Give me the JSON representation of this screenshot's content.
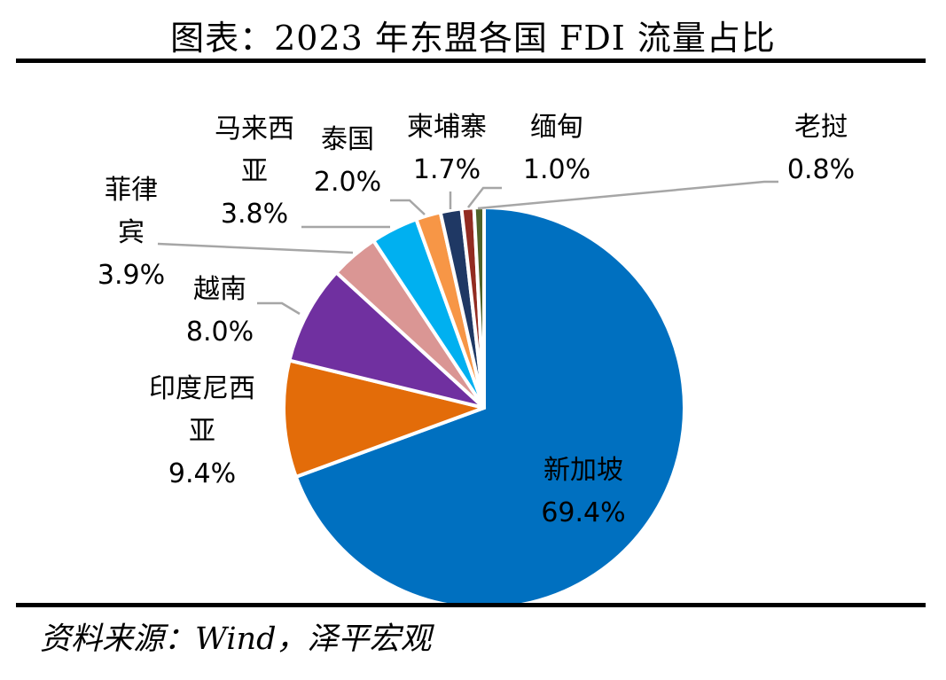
{
  "title": "图表：2023 年东盟各国 FDI 流量占比",
  "source": "资料来源：Wind，泽平宏观",
  "chart_data": {
    "type": "pie",
    "start_angle_deg": 0,
    "direction": "clockwise",
    "slices": [
      {
        "name": "新加坡",
        "value": 69.4,
        "label": "69.4%",
        "color": "#0070C0"
      },
      {
        "name": "印度尼西亚",
        "value": 9.4,
        "label": "9.4%",
        "color": "#E36C09"
      },
      {
        "name": "越南",
        "value": 8.0,
        "label": "8.0%",
        "color": "#7030A0"
      },
      {
        "name": "菲律宾",
        "value": 3.9,
        "label": "3.9%",
        "color": "#DA9694"
      },
      {
        "name": "马来西亚",
        "value": 3.8,
        "label": "3.8%",
        "color": "#00B0F0"
      },
      {
        "name": "泰国",
        "value": 2.0,
        "label": "2.0%",
        "color": "#F79646"
      },
      {
        "name": "柬埔寨",
        "value": 1.7,
        "label": "1.7%",
        "color": "#1F3864"
      },
      {
        "name": "缅甸",
        "value": 1.0,
        "label": "1.0%",
        "color": "#922B21"
      },
      {
        "name": "老挝",
        "value": 0.8,
        "label": "0.8%",
        "color": "#4F6228"
      }
    ]
  }
}
